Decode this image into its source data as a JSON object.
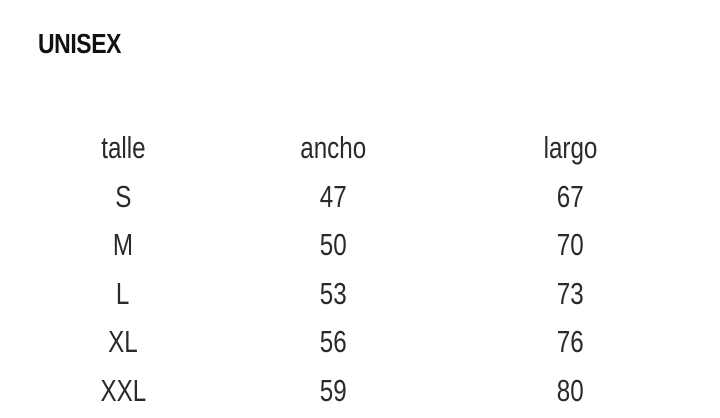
{
  "title": "UNISEX",
  "table": {
    "headers": [
      "talle",
      "ancho",
      "largo"
    ],
    "rows": [
      [
        "S",
        "47",
        "67"
      ],
      [
        "M",
        "50",
        "70"
      ],
      [
        "L",
        "53",
        "73"
      ],
      [
        "XL",
        "56",
        "76"
      ],
      [
        "XXL",
        "59",
        "80"
      ]
    ]
  }
}
